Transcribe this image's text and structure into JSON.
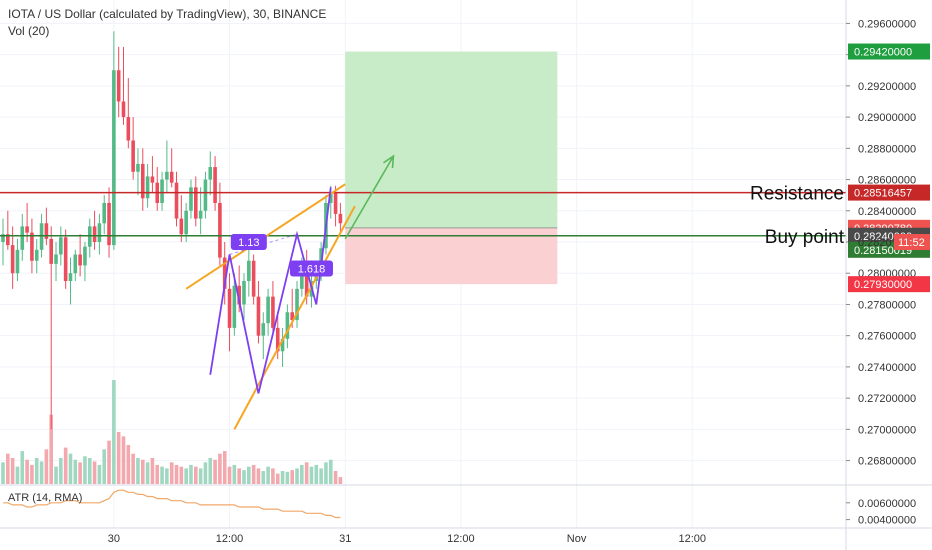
{
  "header": {
    "title": "IOTA / US Dollar (calculated by TradingView), 30, BINANCE",
    "volume_label": "Vol (20)",
    "atr_label": "ATR (14, RMA)"
  },
  "colors": {
    "up": "#53b987",
    "down": "#eb4d5c",
    "vol_up": "#9fd7c1",
    "vol_down": "#f3a8ad",
    "resistance": "#c62828",
    "buy_line": "#2e7d32",
    "profit_zone": "#c8ebc8",
    "loss_zone": "#fbd0d3",
    "trend": "#f5a623",
    "pattern": "#7e3ff2",
    "arrow": "#5cb85c",
    "atr": "#f0a868",
    "grid": "#f0f3fa"
  },
  "chart_data": {
    "type": "candlestick",
    "y_range": [
      0.2665,
      0.2975
    ],
    "y_ticks": [
      "0.29600000",
      "0.29400000",
      "0.29200000",
      "0.29000000",
      "0.28800000",
      "0.28600000",
      "0.28400000",
      "0.28200000",
      "0.28000000",
      "0.27800000",
      "0.27600000",
      "0.27400000",
      "0.27200000",
      "0.27000000",
      "0.26800000"
    ],
    "y_tick_values": [
      0.296,
      0.294,
      0.292,
      0.29,
      0.288,
      0.286,
      0.284,
      0.282,
      0.28,
      0.278,
      0.276,
      0.274,
      0.272,
      0.27,
      0.268
    ],
    "x_ticks": [
      {
        "label": "30",
        "bar": 23
      },
      {
        "label": "12:00",
        "bar": 47
      },
      {
        "label": "31",
        "bar": 71
      },
      {
        "label": "12:00",
        "bar": 95
      },
      {
        "label": "Nov",
        "bar": 119
      },
      {
        "label": "12:00",
        "bar": 143
      }
    ],
    "candles": [
      [
        0.282,
        0.2835,
        0.2805,
        0.2825
      ],
      [
        0.2825,
        0.284,
        0.2815,
        0.2818
      ],
      [
        0.2818,
        0.283,
        0.279,
        0.28
      ],
      [
        0.28,
        0.2822,
        0.2795,
        0.2815
      ],
      [
        0.2815,
        0.2838,
        0.2808,
        0.283
      ],
      [
        0.283,
        0.2845,
        0.282,
        0.2826
      ],
      [
        0.2826,
        0.2835,
        0.28,
        0.2808
      ],
      [
        0.2808,
        0.2822,
        0.28,
        0.2815
      ],
      [
        0.2815,
        0.2838,
        0.281,
        0.2832
      ],
      [
        0.2832,
        0.2842,
        0.2818,
        0.2822
      ],
      [
        0.2822,
        0.283,
        0.27,
        0.2806
      ],
      [
        0.2806,
        0.282,
        0.2795,
        0.2812
      ],
      [
        0.2812,
        0.283,
        0.2805,
        0.2823
      ],
      [
        0.2823,
        0.2828,
        0.279,
        0.2795
      ],
      [
        0.2795,
        0.281,
        0.278,
        0.28
      ],
      [
        0.28,
        0.2815,
        0.2795,
        0.2812
      ],
      [
        0.2812,
        0.2825,
        0.2798,
        0.2805
      ],
      [
        0.2805,
        0.282,
        0.2795,
        0.2817
      ],
      [
        0.2817,
        0.2835,
        0.281,
        0.283
      ],
      [
        0.283,
        0.284,
        0.2815,
        0.282
      ],
      [
        0.282,
        0.2838,
        0.2812,
        0.2832
      ],
      [
        0.2832,
        0.285,
        0.2825,
        0.2845
      ],
      [
        0.2845,
        0.2855,
        0.281,
        0.2818
      ],
      [
        0.2818,
        0.2955,
        0.2815,
        0.293
      ],
      [
        0.293,
        0.2945,
        0.29,
        0.291
      ],
      [
        0.291,
        0.2945,
        0.2895,
        0.29
      ],
      [
        0.29,
        0.2925,
        0.288,
        0.2885
      ],
      [
        0.2885,
        0.29,
        0.286,
        0.2865
      ],
      [
        0.2865,
        0.288,
        0.285,
        0.287
      ],
      [
        0.287,
        0.288,
        0.284,
        0.2848
      ],
      [
        0.2848,
        0.287,
        0.2842,
        0.2862
      ],
      [
        0.2862,
        0.2875,
        0.2852,
        0.2858
      ],
      [
        0.2858,
        0.2868,
        0.284,
        0.2845
      ],
      [
        0.2845,
        0.2865,
        0.284,
        0.286
      ],
      [
        0.286,
        0.2885,
        0.2852,
        0.2865
      ],
      [
        0.2865,
        0.288,
        0.2855,
        0.2858
      ],
      [
        0.2858,
        0.2865,
        0.283,
        0.2835
      ],
      [
        0.2835,
        0.285,
        0.282,
        0.2825
      ],
      [
        0.2825,
        0.2845,
        0.282,
        0.284
      ],
      [
        0.284,
        0.286,
        0.2835,
        0.2855
      ],
      [
        0.2855,
        0.2862,
        0.283,
        0.2835
      ],
      [
        0.2835,
        0.2855,
        0.2825,
        0.284
      ],
      [
        0.284,
        0.2865,
        0.2835,
        0.286
      ],
      [
        0.286,
        0.2878,
        0.285,
        0.2868
      ],
      [
        0.2868,
        0.2875,
        0.284,
        0.2845
      ],
      [
        0.2845,
        0.2858,
        0.2805,
        0.281
      ],
      [
        0.281,
        0.282,
        0.278,
        0.279
      ],
      [
        0.279,
        0.28,
        0.275,
        0.2765
      ],
      [
        0.2765,
        0.28,
        0.276,
        0.2792
      ],
      [
        0.2792,
        0.2805,
        0.2775,
        0.278
      ],
      [
        0.278,
        0.28,
        0.277,
        0.2795
      ],
      [
        0.2795,
        0.2815,
        0.2785,
        0.2808
      ],
      [
        0.2808,
        0.2812,
        0.278,
        0.2785
      ],
      [
        0.2785,
        0.2795,
        0.2755,
        0.276
      ],
      [
        0.276,
        0.2775,
        0.2745,
        0.2768
      ],
      [
        0.2768,
        0.279,
        0.276,
        0.2785
      ],
      [
        0.2785,
        0.2795,
        0.276,
        0.2765
      ],
      [
        0.2765,
        0.2775,
        0.2745,
        0.275
      ],
      [
        0.275,
        0.2765,
        0.274,
        0.2758
      ],
      [
        0.2758,
        0.278,
        0.2752,
        0.2775
      ],
      [
        0.2775,
        0.279,
        0.2765,
        0.277
      ],
      [
        0.277,
        0.2795,
        0.2765,
        0.279
      ],
      [
        0.279,
        0.281,
        0.2785,
        0.2805
      ],
      [
        0.2805,
        0.2815,
        0.278,
        0.2785
      ],
      [
        0.2785,
        0.28,
        0.2778,
        0.2795
      ],
      [
        0.2795,
        0.2808,
        0.279,
        0.28
      ],
      [
        0.28,
        0.282,
        0.2795,
        0.2816
      ],
      [
        0.2816,
        0.285,
        0.2812,
        0.2845
      ],
      [
        0.2845,
        0.2856,
        0.2835,
        0.2852
      ],
      [
        0.2852,
        0.2856,
        0.283,
        0.2838
      ],
      [
        0.2838,
        0.2845,
        0.2825,
        0.2832
      ]
    ],
    "volumes": [
      25,
      35,
      30,
      20,
      38,
      28,
      22,
      30,
      26,
      40,
      80,
      20,
      30,
      42,
      35,
      28,
      25,
      32,
      30,
      26,
      22,
      40,
      50,
      120,
      60,
      55,
      45,
      35,
      30,
      28,
      25,
      30,
      22,
      20,
      18,
      25,
      22,
      20,
      18,
      22,
      20,
      18,
      25,
      30,
      28,
      35,
      38,
      20,
      22,
      18,
      16,
      20,
      22,
      18,
      15,
      20,
      18,
      12,
      15,
      14,
      16,
      18,
      22,
      25,
      20,
      22,
      18,
      25,
      28,
      15,
      8
    ],
    "atr": [
      12,
      12,
      11,
      11,
      11,
      10,
      10,
      11,
      11,
      11,
      12,
      12,
      12,
      13,
      13,
      13,
      12,
      12,
      12,
      12,
      12,
      13,
      14,
      17,
      18,
      18,
      17,
      17,
      16,
      16,
      15,
      15,
      14,
      14,
      14,
      13,
      13,
      13,
      12,
      12,
      12,
      11,
      11,
      11,
      11,
      11,
      11,
      11,
      11,
      10,
      10,
      10,
      10,
      10,
      9,
      9,
      9,
      9,
      8,
      8,
      8,
      8,
      8,
      7,
      7,
      7,
      7,
      6,
      6,
      5,
      5
    ],
    "atr_range": [
      0,
      20
    ],
    "atr_ticks": [
      "0.00600000",
      "0.00400000"
    ],
    "atr_tick_values": [
      12,
      4
    ]
  },
  "drawings": {
    "resistance_price": 0.28516457,
    "buy_price": 0.2824,
    "resistance_label": "Resistance",
    "buy_label": "Buy point",
    "target_price": 0.2942,
    "stop_price": 0.2793,
    "entry_price": 0.2829078,
    "position_start_bar": 71,
    "position_end_bar": 115,
    "wedge_upper": [
      [
        38,
        0.279
      ],
      [
        71,
        0.2857
      ]
    ],
    "wedge_lower": [
      [
        48,
        0.27
      ],
      [
        73,
        0.2843
      ]
    ],
    "pattern_points": [
      [
        43,
        0.2735
      ],
      [
        47,
        0.2812
      ],
      [
        53,
        0.2723
      ],
      [
        61,
        0.2825
      ],
      [
        65,
        0.278
      ],
      [
        68,
        0.2855
      ]
    ],
    "pattern_label_1": "1.13",
    "pattern_label_1_at": [
      51,
      0.282
    ],
    "pattern_label_2": "1.618",
    "pattern_label_2_at": [
      64,
      0.2803
    ],
    "arrow_from": [
      71,
      0.2822
    ],
    "arrow_to": [
      81,
      0.2875
    ]
  },
  "price_labels": [
    {
      "text": "0.29420000",
      "price": 0.2942,
      "bg": "#1e9e3e"
    },
    {
      "text": "0.28516457",
      "price": 0.28516457,
      "bg": "#c62828"
    },
    {
      "text": "0.28290780",
      "price": 0.2829078,
      "bg": "#ef5350"
    },
    {
      "text": "0.28240000",
      "price": 0.2824,
      "bg": "#4a4a4a"
    },
    {
      "text": "0.28150019",
      "price": 0.2815,
      "bg": "#2e7d32"
    },
    {
      "text": "0.27930000",
      "price": 0.2793,
      "bg": "#f23645"
    }
  ],
  "countdown": {
    "price_text": "0.2820",
    "timer": "11:52",
    "price": 0.282
  }
}
